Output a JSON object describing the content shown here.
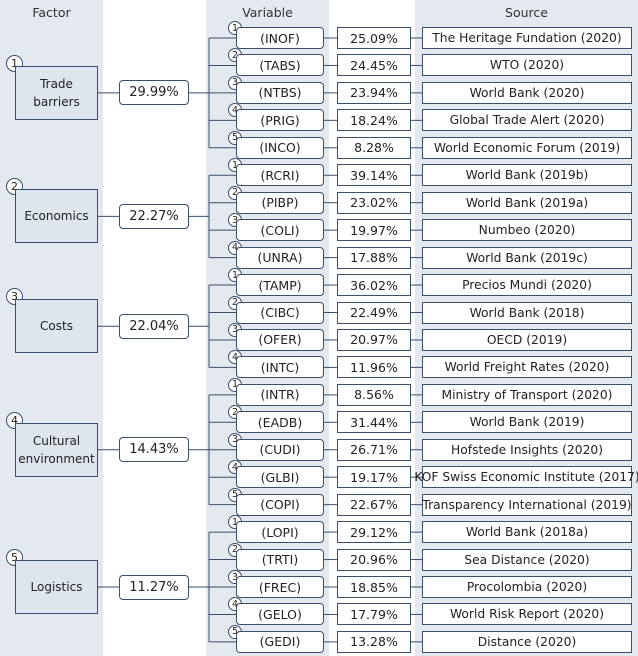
{
  "headers": {
    "factor": "Factor",
    "variable": "Variable",
    "source": "Source"
  },
  "factors": [
    {
      "num": "1",
      "name": "Trade barriers",
      "weight": "29.99%",
      "variables": [
        {
          "num": "1",
          "code": "(INOF)",
          "value": "25.09%",
          "source": "The Heritage Fundation (2020)"
        },
        {
          "num": "2",
          "code": "(TABS)",
          "value": "24.45%",
          "source": "WTO (2020)"
        },
        {
          "num": "3",
          "code": "(NTBS)",
          "value": "23.94%",
          "source": "World Bank (2020)"
        },
        {
          "num": "4",
          "code": "(PRIG)",
          "value": "18.24%",
          "source": "Global Trade Alert (2020)"
        },
        {
          "num": "5",
          "code": "(INCO)",
          "value": "8.28%",
          "source": "World Economic Forum (2019)"
        }
      ]
    },
    {
      "num": "2",
      "name": "Economics",
      "weight": "22.27%",
      "variables": [
        {
          "num": "1",
          "code": "(RCRI)",
          "value": "39.14%",
          "source": "World Bank (2019b)"
        },
        {
          "num": "2",
          "code": "(PIBP)",
          "value": "23.02%",
          "source": "World Bank (2019a)"
        },
        {
          "num": "3",
          "code": "(COLI)",
          "value": "19.97%",
          "source": "Numbeo (2020)"
        },
        {
          "num": "4",
          "code": "(UNRA)",
          "value": "17.88%",
          "source": "World Bank (2019c)"
        }
      ]
    },
    {
      "num": "3",
      "name": "Costs",
      "weight": "22.04%",
      "variables": [
        {
          "num": "1",
          "code": "(TAMP)",
          "value": "36.02%",
          "source": "Precios Mundi (2020)"
        },
        {
          "num": "2",
          "code": "(CIBC)",
          "value": "22.49%",
          "source": "World Bank (2018)"
        },
        {
          "num": "3",
          "code": "(OFER)",
          "value": "20.97%",
          "source": "OECD (2019)"
        },
        {
          "num": "4",
          "code": "(INTC)",
          "value": "11.96%",
          "source": "World Freight Rates (2020)"
        }
      ]
    },
    {
      "num": "4",
      "name": "Cultural environment",
      "weight": "14.43%",
      "variables": [
        {
          "num": "1",
          "code": "(INTR)",
          "value": "8.56%",
          "source": "Ministry of Transport (2020)"
        },
        {
          "num": "2",
          "code": "(EADB)",
          "value": "31.44%",
          "source": "World Bank (2019)"
        },
        {
          "num": "3",
          "code": "(CUDI)",
          "value": "26.71%",
          "source": "Hofstede Insights (2020)"
        },
        {
          "num": "4",
          "code": "(GLBI)",
          "value": "19.17%",
          "source": "KOF Swiss Economic Institute (2017)"
        },
        {
          "num": "5",
          "code": "(COPI)",
          "value": "22.67%",
          "source": "Transparency International (2019)"
        }
      ]
    },
    {
      "num": "5",
      "name": "Logistics",
      "weight": "11.27%",
      "variables": [
        {
          "num": "1",
          "code": "(LOPI)",
          "value": "29.12%",
          "source": "World Bank (2018a)"
        },
        {
          "num": "2",
          "code": "(TRTI)",
          "value": "20.96%",
          "source": "Sea Distance (2020)"
        },
        {
          "num": "3",
          "code": "(FREC)",
          "value": "18.85%",
          "source": "Procolombia (2020)"
        },
        {
          "num": "4",
          "code": "(GELO)",
          "value": "17.79%",
          "source": "World Risk Report (2020)"
        },
        {
          "num": "5",
          "code": "(GEDI)",
          "value": "13.28%",
          "source": "Distance (2020)"
        }
      ]
    }
  ]
}
